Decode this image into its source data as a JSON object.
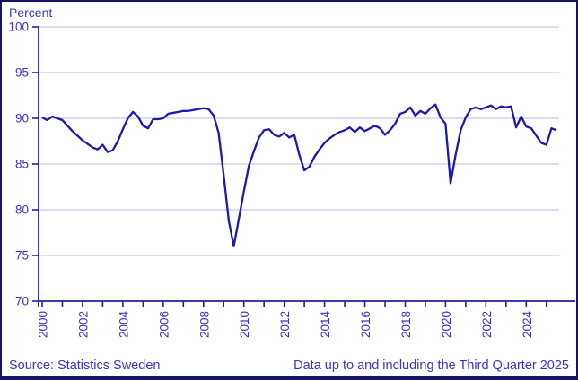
{
  "header": {
    "unit_label": "Percent"
  },
  "footer": {
    "source": "Source: Statistics Sweden",
    "note": "Data up to and including the Third Quarter 2025"
  },
  "colors": {
    "text": "#3c33c6",
    "axis": "#23209e",
    "line": "#1d19ae",
    "grid": "#c9c9ea",
    "frame": "#14146a"
  },
  "chart_data": {
    "type": "line",
    "title": "",
    "ylabel": "Percent",
    "xlabel": "",
    "ylim": [
      70,
      100
    ],
    "y_ticks": [
      70,
      75,
      80,
      85,
      90,
      95,
      100
    ],
    "grid": true,
    "legend": "none",
    "frequency": "quarterly",
    "start": "2000 Q1",
    "end": "2025 Q3",
    "x_tick_years": [
      2000,
      2001,
      2002,
      2003,
      2004,
      2005,
      2006,
      2007,
      2008,
      2009,
      2010,
      2011,
      2012,
      2013,
      2014,
      2015,
      2016,
      2017,
      2018,
      2019,
      2020,
      2021,
      2022,
      2023,
      2024,
      2025
    ],
    "x_label_years": [
      2000,
      2002,
      2004,
      2006,
      2008,
      2010,
      2012,
      2014,
      2016,
      2018,
      2020,
      2022,
      2024
    ],
    "values": [
      90.1,
      89.8,
      90.2,
      90.0,
      89.8,
      89.2,
      88.6,
      88.1,
      87.6,
      87.2,
      86.8,
      86.6,
      87.1,
      86.3,
      86.5,
      87.5,
      88.8,
      90.0,
      90.7,
      90.2,
      89.2,
      88.9,
      89.9,
      89.9,
      90.0,
      90.5,
      90.6,
      90.7,
      90.8,
      90.8,
      90.9,
      91.0,
      91.1,
      91.0,
      90.3,
      88.4,
      83.8,
      78.8,
      76.0,
      79.0,
      82.0,
      84.8,
      86.4,
      87.9,
      88.7,
      88.8,
      88.2,
      88.0,
      88.4,
      87.9,
      88.2,
      86.0,
      84.3,
      84.7,
      85.8,
      86.6,
      87.3,
      87.8,
      88.2,
      88.5,
      88.7,
      89.0,
      88.5,
      89.0,
      88.6,
      88.9,
      89.2,
      88.9,
      88.2,
      88.7,
      89.4,
      90.5,
      90.7,
      91.2,
      90.3,
      90.8,
      90.5,
      91.1,
      91.5,
      90.1,
      89.4,
      82.9,
      86.0,
      88.7,
      90.1,
      91.0,
      91.2,
      91.0,
      91.2,
      91.4,
      91.0,
      91.3,
      91.2,
      91.3,
      89.0,
      90.2,
      89.1,
      88.9,
      88.1,
      87.3,
      87.1,
      88.9,
      88.7
    ]
  }
}
